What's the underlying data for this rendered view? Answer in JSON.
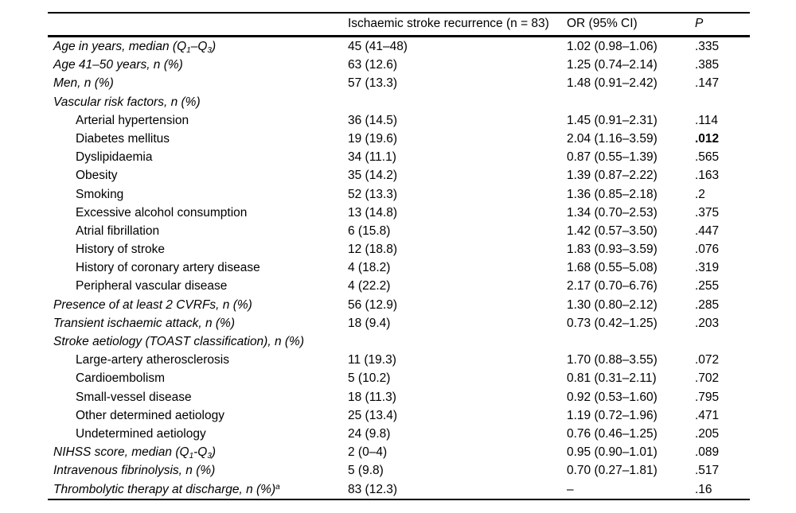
{
  "table": {
    "columns": [
      "",
      "Ischaemic stroke recurrence (n = 83)",
      "OR (95% CI)",
      "P"
    ],
    "rows": [
      {
        "parts": [
          {
            "t": "Age in years, median (Q"
          },
          {
            "t": "1",
            "sub": true
          },
          {
            "t": "–Q"
          },
          {
            "t": "3",
            "sub": true
          },
          {
            "t": ")"
          }
        ],
        "italic": true,
        "indent": false,
        "value": "45 (41–48)",
        "or": "1.02 (0.98–1.06)",
        "p": ".335",
        "p_bold": false
      },
      {
        "parts": [
          {
            "t": "Age 41–50 years, n (%)"
          }
        ],
        "italic": true,
        "indent": false,
        "value": "63 (12.6)",
        "or": "1.25 (0.74–2.14)",
        "p": ".385",
        "p_bold": false
      },
      {
        "parts": [
          {
            "t": "Men, n (%)"
          }
        ],
        "italic": true,
        "indent": false,
        "value": "57 (13.3)",
        "or": "1.48 (0.91–2.42)",
        "p": ".147",
        "p_bold": false
      },
      {
        "parts": [
          {
            "t": "Vascular risk factors, n (%)"
          }
        ],
        "italic": true,
        "indent": false,
        "value": "",
        "or": "",
        "p": "",
        "p_bold": false
      },
      {
        "parts": [
          {
            "t": "Arterial hypertension"
          }
        ],
        "italic": false,
        "indent": true,
        "value": "36 (14.5)",
        "or": "1.45 (0.91–2.31)",
        "p": ".114",
        "p_bold": false
      },
      {
        "parts": [
          {
            "t": "Diabetes mellitus"
          }
        ],
        "italic": false,
        "indent": true,
        "value": "19 (19.6)",
        "or": "2.04 (1.16–3.59)",
        "p": ".012",
        "p_bold": true
      },
      {
        "parts": [
          {
            "t": "Dyslipidaemia"
          }
        ],
        "italic": false,
        "indent": true,
        "value": "34 (11.1)",
        "or": "0.87 (0.55–1.39)",
        "p": ".565",
        "p_bold": false
      },
      {
        "parts": [
          {
            "t": "Obesity"
          }
        ],
        "italic": false,
        "indent": true,
        "value": "35 (14.2)",
        "or": "1.39 (0.87–2.22)",
        "p": ".163",
        "p_bold": false
      },
      {
        "parts": [
          {
            "t": "Smoking"
          }
        ],
        "italic": false,
        "indent": true,
        "value": "52 (13.3)",
        "or": "1.36 (0.85–2.18)",
        "p": ".2",
        "p_bold": false
      },
      {
        "parts": [
          {
            "t": "Excessive alcohol consumption"
          }
        ],
        "italic": false,
        "indent": true,
        "value": "13 (14.8)",
        "or": "1.34 (0.70–2.53)",
        "p": ".375",
        "p_bold": false
      },
      {
        "parts": [
          {
            "t": "Atrial fibrillation"
          }
        ],
        "italic": false,
        "indent": true,
        "value": "6 (15.8)",
        "or": "1.42 (0.57–3.50)",
        "p": ".447",
        "p_bold": false
      },
      {
        "parts": [
          {
            "t": "History of stroke"
          }
        ],
        "italic": false,
        "indent": true,
        "value": "12 (18.8)",
        "or": "1.83 (0.93–3.59)",
        "p": ".076",
        "p_bold": false
      },
      {
        "parts": [
          {
            "t": "History of coronary artery disease"
          }
        ],
        "italic": false,
        "indent": true,
        "value": "4 (18.2)",
        "or": "1.68 (0.55–5.08)",
        "p": ".319",
        "p_bold": false
      },
      {
        "parts": [
          {
            "t": "Peripheral vascular disease"
          }
        ],
        "italic": false,
        "indent": true,
        "value": "4 (22.2)",
        "or": "2.17 (0.70–6.76)",
        "p": ".255",
        "p_bold": false
      },
      {
        "parts": [
          {
            "t": "Presence of at least 2 CVRFs, n (%)"
          }
        ],
        "italic": true,
        "indent": false,
        "value": "56 (12.9)",
        "or": "1.30 (0.80–2.12)",
        "p": ".285",
        "p_bold": false
      },
      {
        "parts": [
          {
            "t": "Transient ischaemic attack, n (%)"
          }
        ],
        "italic": true,
        "indent": false,
        "value": "18 (9.4)",
        "or": "0.73 (0.42–1.25)",
        "p": ".203",
        "p_bold": false
      },
      {
        "parts": [
          {
            "t": "Stroke aetiology (TOAST classification), n (%)"
          }
        ],
        "italic": true,
        "indent": false,
        "value": "",
        "or": "",
        "p": "",
        "p_bold": false
      },
      {
        "parts": [
          {
            "t": "Large-artery atherosclerosis"
          }
        ],
        "italic": false,
        "indent": true,
        "value": "11 (19.3)",
        "or": "1.70 (0.88–3.55)",
        "p": ".072",
        "p_bold": false
      },
      {
        "parts": [
          {
            "t": "Cardioembolism"
          }
        ],
        "italic": false,
        "indent": true,
        "value": "5 (10.2)",
        "or": "0.81 (0.31–2.11)",
        "p": ".702",
        "p_bold": false
      },
      {
        "parts": [
          {
            "t": "Small-vessel disease"
          }
        ],
        "italic": false,
        "indent": true,
        "value": "18 (11.3)",
        "or": "0.92 (0.53–1.60)",
        "p": ".795",
        "p_bold": false
      },
      {
        "parts": [
          {
            "t": "Other determined aetiology"
          }
        ],
        "italic": false,
        "indent": true,
        "value": "25 (13.4)",
        "or": "1.19 (0.72–1.96)",
        "p": ".471",
        "p_bold": false
      },
      {
        "parts": [
          {
            "t": "Undetermined aetiology"
          }
        ],
        "italic": false,
        "indent": true,
        "value": "24 (9.8)",
        "or": "0.76 (0.46–1.25)",
        "p": ".205",
        "p_bold": false
      },
      {
        "parts": [
          {
            "t": "NIHSS score, median (Q"
          },
          {
            "t": "1",
            "sub": true
          },
          {
            "t": "-Q"
          },
          {
            "t": "3",
            "sub": true
          },
          {
            "t": ")"
          }
        ],
        "italic": true,
        "indent": false,
        "value": "2 (0–4)",
        "or": "0.95 (0.90–1.01)",
        "p": ".089",
        "p_bold": false
      },
      {
        "parts": [
          {
            "t": "Intravenous fibrinolysis, n (%)"
          }
        ],
        "italic": true,
        "indent": false,
        "value": "5 (9.8)",
        "or": "0.70 (0.27–1.81)",
        "p": ".517",
        "p_bold": false
      },
      {
        "parts": [
          {
            "t": "Thrombolytic therapy at discharge, n (%)"
          },
          {
            "t": "a",
            "sup": true
          }
        ],
        "italic": true,
        "indent": false,
        "value": "83 (12.3)",
        "or": "–",
        "p": ".16",
        "p_bold": false
      }
    ]
  }
}
